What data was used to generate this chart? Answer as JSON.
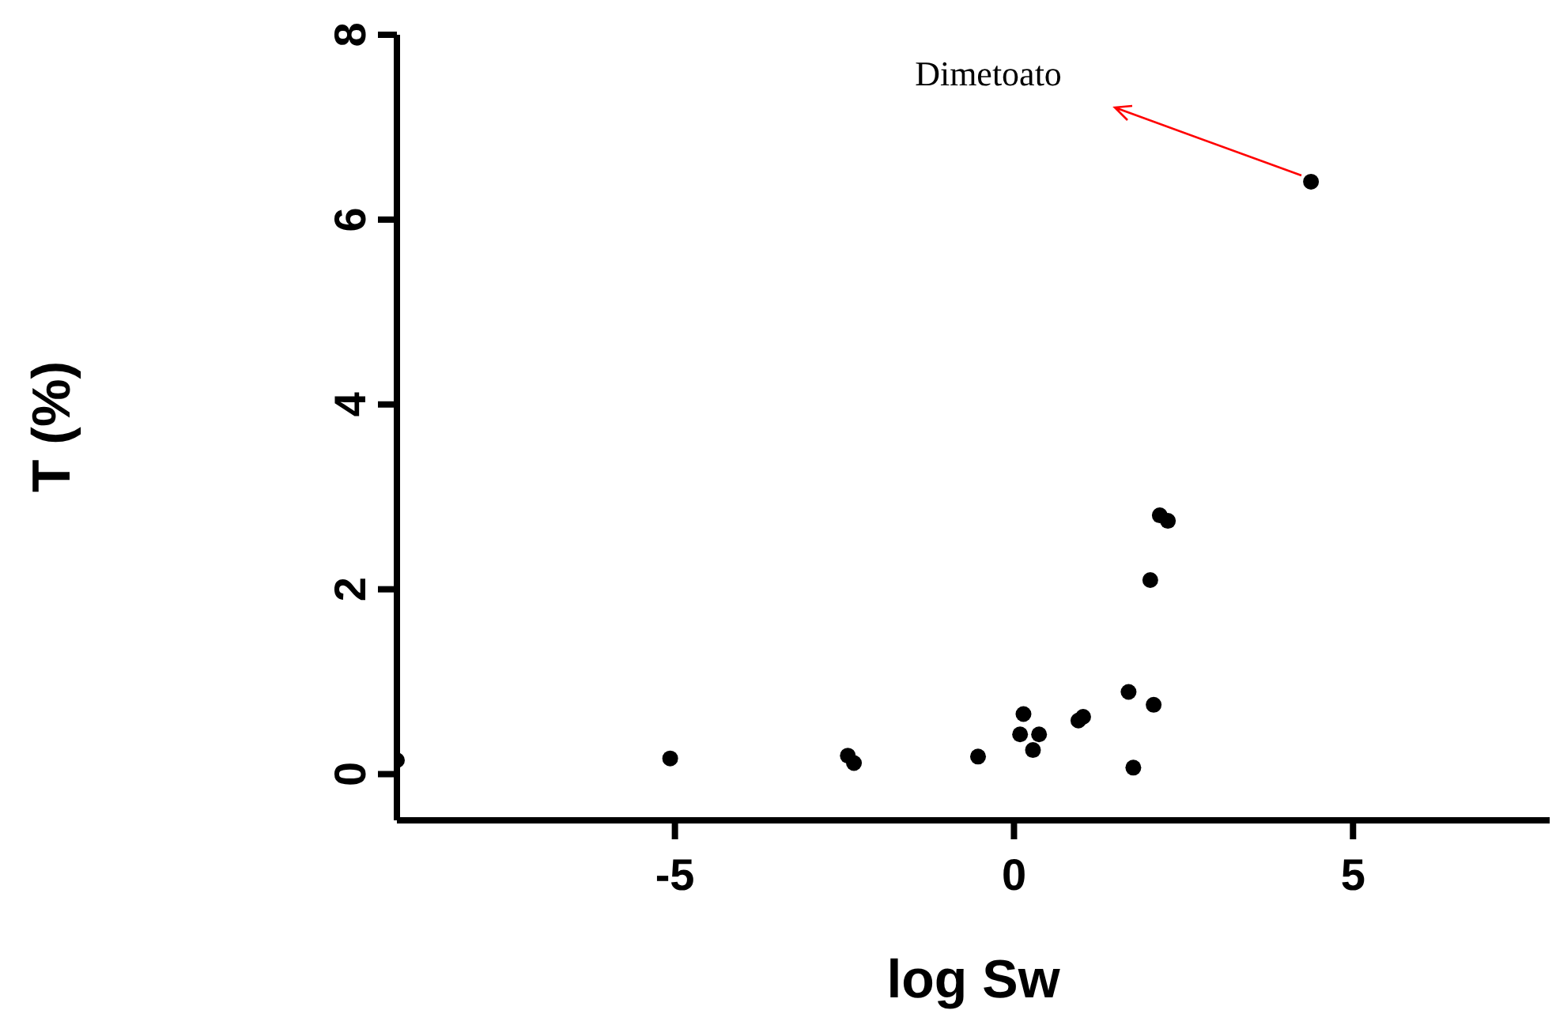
{
  "chart_data": {
    "type": "scatter",
    "xlabel": "log Sw",
    "ylabel": "T (%)",
    "xlim": [
      -9.1,
      7.9
    ],
    "ylim": [
      -0.5,
      8
    ],
    "xticks": [
      -5,
      0,
      5
    ],
    "yticks": [
      0,
      2,
      4,
      6,
      8
    ],
    "grid": false,
    "legend": false,
    "marker": "circle",
    "annotations": [
      "Dimetoato"
    ],
    "series": [
      {
        "color": "#000000",
        "x": [
          -9.1,
          -5.07,
          -2.45,
          -2.36,
          -0.53,
          0.14,
          0.09,
          0.28,
          0.37,
          0.95,
          1.02,
          1.69,
          1.76,
          2.06,
          2.01,
          2.15,
          2.27,
          4.38
        ],
        "values": [
          0.15,
          0.17,
          0.2,
          0.12,
          0.19,
          0.65,
          0.43,
          0.26,
          0.43,
          0.58,
          0.62,
          0.89,
          0.07,
          0.75,
          2.1,
          2.8,
          2.74,
          6.41
        ]
      }
    ]
  }
}
